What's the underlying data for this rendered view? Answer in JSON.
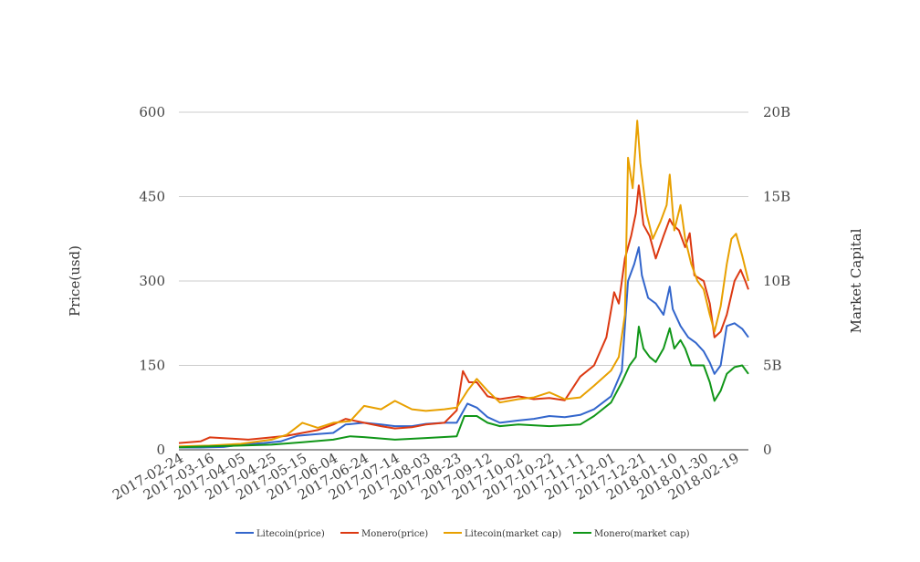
{
  "chart_data": {
    "type": "line",
    "ylabel_left": "Price(usd)",
    "ylabel_right": "Market Capital",
    "xticks": [
      "2017-02-24",
      "2017-03-16",
      "2017-04-05",
      "2017-04-25",
      "2017-05-15",
      "2017-06-04",
      "2017-06-24",
      "2017-07-14",
      "2017-08-03",
      "2017-08-23",
      "2017-09-12",
      "2017-10-02",
      "2017-10-22",
      "2017-11-11",
      "2017-12-01",
      "2017-12-21",
      "2018-01-10",
      "2018-01-30",
      "2018-02-19"
    ],
    "yticks_left": [
      "0",
      "150",
      "300",
      "450",
      "600"
    ],
    "ylim_left": [
      0,
      600
    ],
    "yticks_right": [
      "0",
      "5B",
      "10B",
      "15B",
      "20B"
    ],
    "ylim_right": [
      0,
      20
    ],
    "x_start": "2017-02-24",
    "x_end": "2018-02-28",
    "grid": true,
    "legend_position": "bottom",
    "series": [
      {
        "name": "Litecoin(price)",
        "axis": "left",
        "color": "#3366cc",
        "points": [
          [
            "2017-02-24",
            4
          ],
          [
            "2017-03-10",
            4
          ],
          [
            "2017-03-25",
            5
          ],
          [
            "2017-04-05",
            9
          ],
          [
            "2017-04-20",
            12
          ],
          [
            "2017-05-01",
            15
          ],
          [
            "2017-05-12",
            25
          ],
          [
            "2017-05-25",
            28
          ],
          [
            "2017-06-04",
            30
          ],
          [
            "2017-06-12",
            45
          ],
          [
            "2017-06-24",
            48
          ],
          [
            "2017-07-05",
            45
          ],
          [
            "2017-07-14",
            42
          ],
          [
            "2017-07-25",
            42
          ],
          [
            "2017-08-03",
            46
          ],
          [
            "2017-08-15",
            48
          ],
          [
            "2017-08-23",
            48
          ],
          [
            "2017-08-30",
            82
          ],
          [
            "2017-09-05",
            75
          ],
          [
            "2017-09-12",
            58
          ],
          [
            "2017-09-20",
            48
          ],
          [
            "2017-10-02",
            52
          ],
          [
            "2017-10-12",
            55
          ],
          [
            "2017-10-22",
            60
          ],
          [
            "2017-11-01",
            58
          ],
          [
            "2017-11-11",
            62
          ],
          [
            "2017-11-20",
            72
          ],
          [
            "2017-12-01",
            95
          ],
          [
            "2017-12-08",
            140
          ],
          [
            "2017-12-12",
            300
          ],
          [
            "2017-12-16",
            330
          ],
          [
            "2017-12-19",
            360
          ],
          [
            "2017-12-21",
            310
          ],
          [
            "2017-12-25",
            270
          ],
          [
            "2017-12-30",
            260
          ],
          [
            "2018-01-04",
            240
          ],
          [
            "2018-01-08",
            290
          ],
          [
            "2018-01-10",
            250
          ],
          [
            "2018-01-15",
            220
          ],
          [
            "2018-01-20",
            200
          ],
          [
            "2018-01-25",
            190
          ],
          [
            "2018-01-30",
            175
          ],
          [
            "2018-02-03",
            155
          ],
          [
            "2018-02-06",
            135
          ],
          [
            "2018-02-10",
            150
          ],
          [
            "2018-02-14",
            220
          ],
          [
            "2018-02-19",
            225
          ],
          [
            "2018-02-24",
            215
          ],
          [
            "2018-02-28",
            200
          ]
        ]
      },
      {
        "name": "Monero(price)",
        "axis": "left",
        "color": "#dc3912",
        "points": [
          [
            "2017-02-24",
            12
          ],
          [
            "2017-03-10",
            15
          ],
          [
            "2017-03-16",
            22
          ],
          [
            "2017-03-30",
            20
          ],
          [
            "2017-04-10",
            18
          ],
          [
            "2017-04-25",
            22
          ],
          [
            "2017-05-05",
            25
          ],
          [
            "2017-05-15",
            30
          ],
          [
            "2017-05-25",
            35
          ],
          [
            "2017-06-04",
            45
          ],
          [
            "2017-06-12",
            55
          ],
          [
            "2017-06-24",
            48
          ],
          [
            "2017-07-05",
            42
          ],
          [
            "2017-07-14",
            38
          ],
          [
            "2017-07-25",
            40
          ],
          [
            "2017-08-03",
            45
          ],
          [
            "2017-08-15",
            48
          ],
          [
            "2017-08-23",
            70
          ],
          [
            "2017-08-27",
            140
          ],
          [
            "2017-08-31",
            120
          ],
          [
            "2017-09-05",
            120
          ],
          [
            "2017-09-12",
            95
          ],
          [
            "2017-09-20",
            90
          ],
          [
            "2017-10-02",
            95
          ],
          [
            "2017-10-12",
            90
          ],
          [
            "2017-10-22",
            92
          ],
          [
            "2017-11-01",
            88
          ],
          [
            "2017-11-11",
            130
          ],
          [
            "2017-11-20",
            150
          ],
          [
            "2017-11-28",
            200
          ],
          [
            "2017-12-03",
            280
          ],
          [
            "2017-12-06",
            260
          ],
          [
            "2017-12-10",
            340
          ],
          [
            "2017-12-14",
            380
          ],
          [
            "2017-12-17",
            420
          ],
          [
            "2017-12-19",
            470
          ],
          [
            "2017-12-22",
            400
          ],
          [
            "2017-12-26",
            380
          ],
          [
            "2017-12-30",
            340
          ],
          [
            "2018-01-04",
            380
          ],
          [
            "2018-01-08",
            410
          ],
          [
            "2018-01-10",
            400
          ],
          [
            "2018-01-14",
            390
          ],
          [
            "2018-01-18",
            360
          ],
          [
            "2018-01-21",
            385
          ],
          [
            "2018-01-24",
            310
          ],
          [
            "2018-01-30",
            300
          ],
          [
            "2018-02-03",
            260
          ],
          [
            "2018-02-06",
            200
          ],
          [
            "2018-02-10",
            210
          ],
          [
            "2018-02-14",
            240
          ],
          [
            "2018-02-19",
            300
          ],
          [
            "2018-02-23",
            320
          ],
          [
            "2018-02-26",
            300
          ],
          [
            "2018-02-28",
            285
          ]
        ]
      },
      {
        "name": "Litecoin(market cap)",
        "axis": "right",
        "color": "#e8a000",
        "points": [
          [
            "2017-02-24",
            0.2
          ],
          [
            "2017-03-16",
            0.25
          ],
          [
            "2017-04-05",
            0.35
          ],
          [
            "2017-04-25",
            0.6
          ],
          [
            "2017-05-05",
            0.9
          ],
          [
            "2017-05-15",
            1.6
          ],
          [
            "2017-05-25",
            1.3
          ],
          [
            "2017-06-04",
            1.6
          ],
          [
            "2017-06-15",
            1.7
          ],
          [
            "2017-06-24",
            2.6
          ],
          [
            "2017-07-05",
            2.4
          ],
          [
            "2017-07-14",
            2.9
          ],
          [
            "2017-07-25",
            2.4
          ],
          [
            "2017-08-03",
            2.3
          ],
          [
            "2017-08-15",
            2.4
          ],
          [
            "2017-08-23",
            2.5
          ],
          [
            "2017-08-30",
            3.5
          ],
          [
            "2017-09-05",
            4.2
          ],
          [
            "2017-09-12",
            3.5
          ],
          [
            "2017-09-20",
            2.8
          ],
          [
            "2017-10-02",
            3.0
          ],
          [
            "2017-10-12",
            3.1
          ],
          [
            "2017-10-22",
            3.4
          ],
          [
            "2017-11-01",
            3.0
          ],
          [
            "2017-11-11",
            3.1
          ],
          [
            "2017-11-20",
            3.8
          ],
          [
            "2017-12-01",
            4.7
          ],
          [
            "2017-12-06",
            5.5
          ],
          [
            "2017-12-10",
            8.0
          ],
          [
            "2017-12-12",
            17.3
          ],
          [
            "2017-12-15",
            15.5
          ],
          [
            "2017-12-18",
            19.5
          ],
          [
            "2017-12-20",
            17.0
          ],
          [
            "2017-12-24",
            14.0
          ],
          [
            "2017-12-28",
            12.5
          ],
          [
            "2018-01-02",
            13.5
          ],
          [
            "2018-01-06",
            14.5
          ],
          [
            "2018-01-08",
            16.3
          ],
          [
            "2018-01-11",
            13.0
          ],
          [
            "2018-01-15",
            14.5
          ],
          [
            "2018-01-18",
            12.5
          ],
          [
            "2018-01-22",
            11.0
          ],
          [
            "2018-01-26",
            10.0
          ],
          [
            "2018-01-30",
            9.5
          ],
          [
            "2018-02-03",
            8.0
          ],
          [
            "2018-02-06",
            7.0
          ],
          [
            "2018-02-10",
            8.5
          ],
          [
            "2018-02-14",
            11.0
          ],
          [
            "2018-02-17",
            12.5
          ],
          [
            "2018-02-20",
            12.8
          ],
          [
            "2018-02-24",
            11.5
          ],
          [
            "2018-02-28",
            10.0
          ]
        ]
      },
      {
        "name": "Monero(market cap)",
        "axis": "right",
        "color": "#109618",
        "points": [
          [
            "2017-02-24",
            0.15
          ],
          [
            "2017-03-16",
            0.2
          ],
          [
            "2017-04-05",
            0.25
          ],
          [
            "2017-04-25",
            0.3
          ],
          [
            "2017-05-15",
            0.45
          ],
          [
            "2017-06-04",
            0.6
          ],
          [
            "2017-06-15",
            0.8
          ],
          [
            "2017-06-24",
            0.75
          ],
          [
            "2017-07-14",
            0.6
          ],
          [
            "2017-08-03",
            0.7
          ],
          [
            "2017-08-23",
            0.8
          ],
          [
            "2017-08-28",
            2.0
          ],
          [
            "2017-09-05",
            2.0
          ],
          [
            "2017-09-12",
            1.6
          ],
          [
            "2017-09-20",
            1.4
          ],
          [
            "2017-10-02",
            1.5
          ],
          [
            "2017-10-22",
            1.4
          ],
          [
            "2017-11-11",
            1.5
          ],
          [
            "2017-11-20",
            2.0
          ],
          [
            "2017-12-01",
            2.8
          ],
          [
            "2017-12-08",
            4.0
          ],
          [
            "2017-12-13",
            5.0
          ],
          [
            "2017-12-17",
            5.5
          ],
          [
            "2017-12-19",
            7.3
          ],
          [
            "2017-12-22",
            6.0
          ],
          [
            "2017-12-26",
            5.5
          ],
          [
            "2017-12-30",
            5.2
          ],
          [
            "2018-01-04",
            6.0
          ],
          [
            "2018-01-08",
            7.2
          ],
          [
            "2018-01-11",
            6.0
          ],
          [
            "2018-01-15",
            6.5
          ],
          [
            "2018-01-18",
            6.0
          ],
          [
            "2018-01-22",
            5.0
          ],
          [
            "2018-01-26",
            5.0
          ],
          [
            "2018-01-30",
            5.0
          ],
          [
            "2018-02-03",
            4.0
          ],
          [
            "2018-02-06",
            2.9
          ],
          [
            "2018-02-10",
            3.5
          ],
          [
            "2018-02-14",
            4.5
          ],
          [
            "2018-02-19",
            4.9
          ],
          [
            "2018-02-24",
            5.0
          ],
          [
            "2018-02-28",
            4.5
          ]
        ]
      }
    ]
  }
}
